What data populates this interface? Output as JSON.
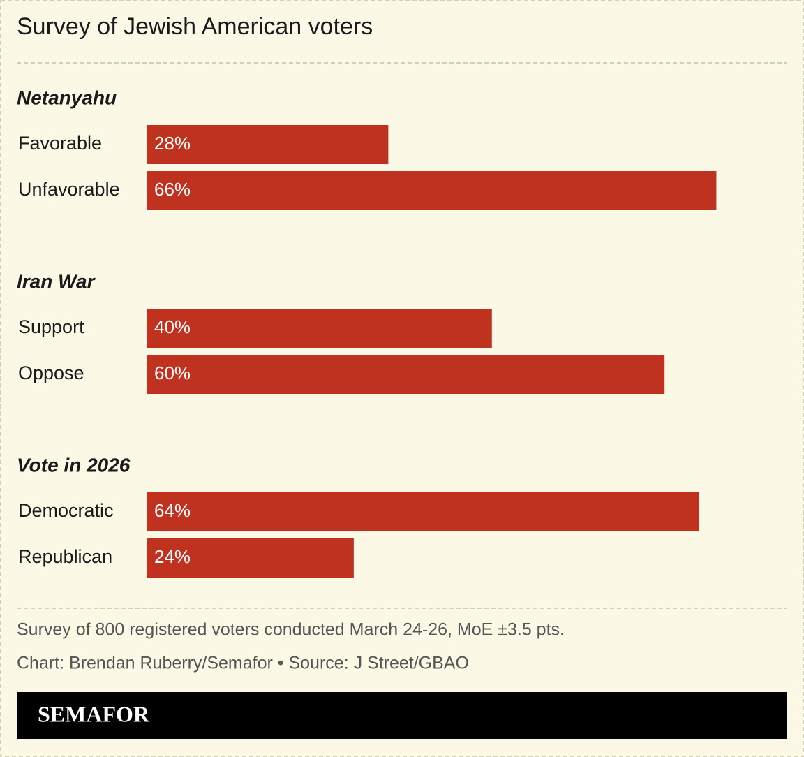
{
  "title": "Survey of Jewish American voters",
  "chart_data": [
    {
      "type": "bar",
      "title": "Netanyahu",
      "categories": [
        "Favorable",
        "Unfavorable"
      ],
      "values": [
        28,
        66
      ],
      "value_labels": [
        "28%",
        "66%"
      ],
      "color": "#c03220"
    },
    {
      "type": "bar",
      "title": "Iran War",
      "categories": [
        "Support",
        "Oppose"
      ],
      "values": [
        40,
        60
      ],
      "value_labels": [
        "40%",
        "60%"
      ],
      "color": "#c03220"
    },
    {
      "type": "bar",
      "title": "Vote in 2026",
      "categories": [
        "Democratic",
        "Republican"
      ],
      "values": [
        64,
        24
      ],
      "value_labels": [
        "64%",
        "24%"
      ],
      "color": "#c03220"
    }
  ],
  "note": "Survey of 800 registered voters conducted March 24-26, MoE ±3.5 pts.",
  "credit": "Chart: Brendan Ruberry/Semafor • Source: J Street/GBAO",
  "brand": "SEMAFOR"
}
